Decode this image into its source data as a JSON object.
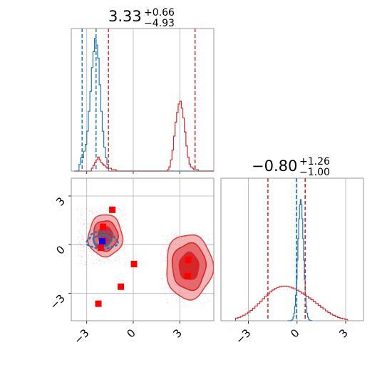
{
  "chart_data": [
    {
      "type": "histogram",
      "panel": "marginal-param-1",
      "title": {
        "value": "3.33",
        "upper": "+0.66",
        "lower": "−4.93"
      },
      "xlim": [
        -4,
        5.2
      ],
      "xticks": [
        -3,
        0,
        3
      ],
      "grid": true,
      "bins": [
        -3.8,
        -3.7,
        -3.6,
        -3.5,
        -3.4,
        -3.3,
        -3.2,
        -3.1,
        -3.0,
        -2.9,
        -2.8,
        -2.7,
        -2.6,
        -2.5,
        -2.4,
        -2.3,
        -2.2,
        -2.1,
        -2.0,
        -1.9,
        -1.8,
        -1.7,
        -1.6,
        -1.5,
        -1.4,
        -1.3,
        -1.2,
        -1.1,
        -1.0,
        -0.9,
        -0.8,
        -0.7,
        -0.6,
        -0.5,
        -0.4,
        -0.3,
        -0.2,
        -0.1,
        0.0,
        0.1,
        0.2,
        0.3,
        0.4,
        0.5,
        0.6,
        0.7,
        0.8,
        0.9,
        1.0,
        1.1,
        1.2,
        1.3,
        1.4,
        1.5,
        1.6,
        1.7,
        1.8,
        1.9,
        2.0,
        2.1,
        2.2,
        2.3,
        2.4,
        2.5,
        2.6,
        2.7,
        2.8,
        2.9,
        3.0,
        3.1,
        3.2,
        3.3,
        3.4,
        3.5,
        3.6,
        3.7,
        3.8,
        3.9,
        4.0,
        4.1,
        4.2,
        4.3,
        4.4,
        4.5,
        4.6,
        4.7,
        4.8,
        4.9,
        5.0,
        5.1
      ],
      "series": [
        {
          "color": "#1f77b4",
          "values": [
            0,
            0,
            0,
            0.05,
            0.1,
            0.1,
            0.15,
            0.2,
            0.3,
            0.45,
            0.6,
            0.78,
            0.9,
            1.0,
            0.95,
            0.85,
            0.65,
            0.45,
            0.3,
            0.18,
            0.1,
            0.05,
            0,
            0,
            0,
            0,
            0,
            0,
            0,
            0,
            0,
            0,
            0,
            0,
            0,
            0,
            0,
            0,
            0,
            0,
            0,
            0,
            0,
            0,
            0,
            0,
            0,
            0,
            0,
            0,
            0,
            0,
            0,
            0,
            0,
            0,
            0,
            0,
            0,
            0,
            0,
            0,
            0,
            0,
            0,
            0,
            0,
            0,
            0,
            0,
            0,
            0,
            0,
            0,
            0,
            0,
            0,
            0,
            0,
            0,
            0,
            0,
            0,
            0,
            0,
            0,
            0,
            0,
            0,
            0
          ],
          "quantiles": [
            -3.3,
            -2.4
          ]
        },
        {
          "color": "#d62728",
          "values": [
            0,
            0,
            0,
            0,
            0,
            0,
            0,
            0,
            0,
            0,
            0,
            0.02,
            0.04,
            0.06,
            0.08,
            0.1,
            0.08,
            0.06,
            0.05,
            0.04,
            0.03,
            0.02,
            0.02,
            0.02,
            0.01,
            0.01,
            0.01,
            0,
            0,
            0,
            0,
            0,
            0,
            0,
            0,
            0,
            0,
            0,
            0,
            0,
            0,
            0,
            0,
            0,
            0,
            0,
            0,
            0,
            0,
            0,
            0,
            0,
            0,
            0,
            0,
            0,
            0,
            0,
            0,
            0,
            0.01,
            0.03,
            0.08,
            0.15,
            0.25,
            0.35,
            0.42,
            0.48,
            0.5,
            0.45,
            0.38,
            0.28,
            0.18,
            0.1,
            0.05,
            0.03,
            0.02,
            0.01,
            0.01,
            0.01,
            0,
            0,
            0,
            0,
            0,
            0,
            0,
            0,
            0,
            0
          ],
          "quantiles": [
            -1.6,
            3.99
          ]
        }
      ]
    },
    {
      "type": "contour",
      "panel": "joint-param-1-vs-param-2",
      "xlim": [
        -4,
        5.2
      ],
      "ylim": [
        -4.7,
        4.1
      ],
      "xticks": [
        -3,
        0,
        3
      ],
      "yticks": [
        -3,
        0,
        3
      ],
      "xticklabels": [
        "−3",
        "0",
        "3"
      ],
      "yticklabels": [
        "−3",
        "0",
        "3"
      ],
      "grid": true,
      "series": [
        {
          "color": "#1f77b4",
          "center": [
            -2.0,
            0.25
          ],
          "extent": [
            0.95,
            0.55
          ]
        },
        {
          "color": "#d62728",
          "modes": [
            {
              "center": [
                -1.8,
                0.55
              ],
              "extent": [
                1.1,
                1.3
              ]
            },
            {
              "center": [
                3.6,
                -1.35
              ],
              "extent": [
                1.5,
                2.0
              ]
            }
          ]
        }
      ],
      "markers_red": [
        [
          -1.35,
          2.15
        ],
        [
          -1.95,
          1.1
        ],
        [
          -2.1,
          -0.2
        ],
        [
          0.05,
          -1.2
        ],
        [
          -0.8,
          -2.6
        ],
        [
          -2.25,
          -3.65
        ],
        [
          3.55,
          -0.95
        ],
        [
          3.5,
          -1.95
        ]
      ],
      "marker_blue": [
        -2.0,
        0.2
      ]
    },
    {
      "type": "histogram",
      "panel": "marginal-param-2",
      "title": {
        "value": "−0.80",
        "upper": "+1.26",
        "lower": "−1.00"
      },
      "xlim": [
        -4.7,
        4.1
      ],
      "xticks": [
        -3,
        0,
        3
      ],
      "grid": true,
      "series": [
        {
          "color": "#1f77b4",
          "quantiles": [
            -0.05,
            0.5
          ]
        },
        {
          "color": "#d62728",
          "quantiles": [
            -1.8,
            0.5
          ]
        }
      ]
    }
  ],
  "axis_labels": {
    "neg3": "−3",
    "zero": "0",
    "pos3": "3"
  }
}
